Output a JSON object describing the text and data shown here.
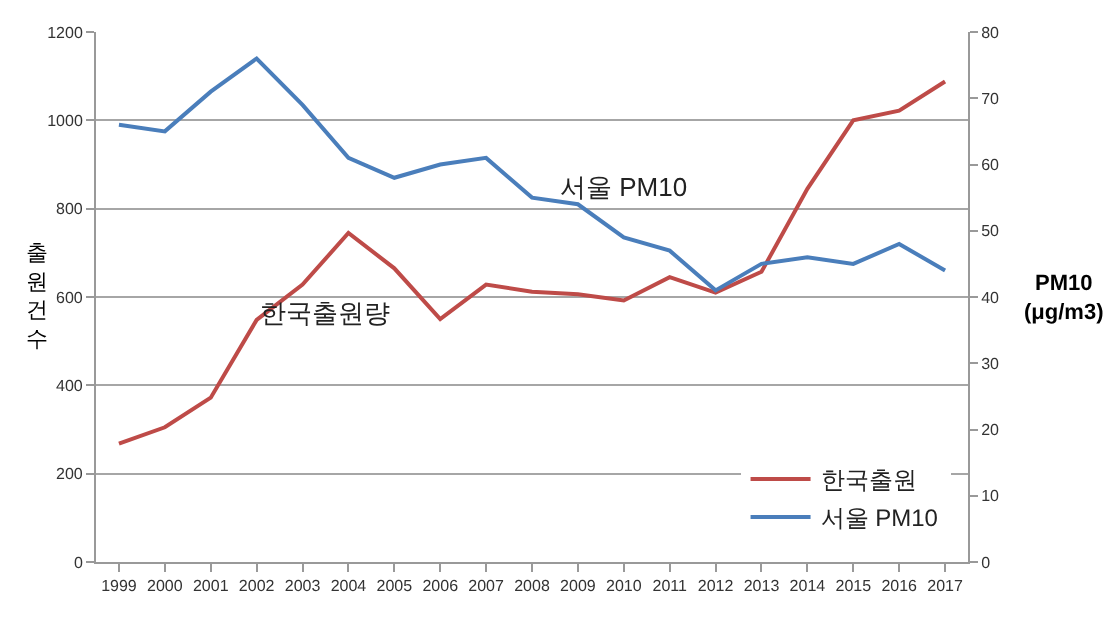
{
  "chart_data": {
    "type": "line",
    "ylabel": "출원건수",
    "y2label": "PM10\n(μg/m3)",
    "categories": [
      "1999",
      "2000",
      "2001",
      "2002",
      "2003",
      "2004",
      "2005",
      "2006",
      "2007",
      "2008",
      "2009",
      "2010",
      "2011",
      "2012",
      "2013",
      "2014",
      "2015",
      "2016",
      "2017"
    ],
    "series": [
      {
        "name": "한국출원",
        "color": "#be4b48",
        "values": [
          268,
          305,
          372,
          548,
          628,
          745,
          665,
          550,
          628,
          612,
          606,
          592,
          645,
          610,
          657,
          845,
          1000,
          1022,
          1088
        ]
      },
      {
        "name": "서울 PM10",
        "color": "#4a7ebb",
        "axis": "y2",
        "values": [
          66,
          65,
          71,
          76,
          69,
          61,
          58,
          60,
          61,
          55,
          54,
          49,
          47,
          41,
          45,
          46,
          45,
          48,
          44
        ]
      }
    ],
    "ylim": [
      0,
      1200
    ],
    "yticks": [
      0,
      200,
      400,
      600,
      800,
      1000,
      1200
    ],
    "y2lim": [
      0,
      80
    ],
    "y2ticks": [
      0,
      10,
      20,
      30,
      40,
      50,
      60,
      70,
      80
    ],
    "annotations": [
      "서울 PM10",
      "한국출원량"
    ],
    "grid": "y",
    "legend": "bottom right",
    "marker": "none",
    "line_style": "solid"
  }
}
